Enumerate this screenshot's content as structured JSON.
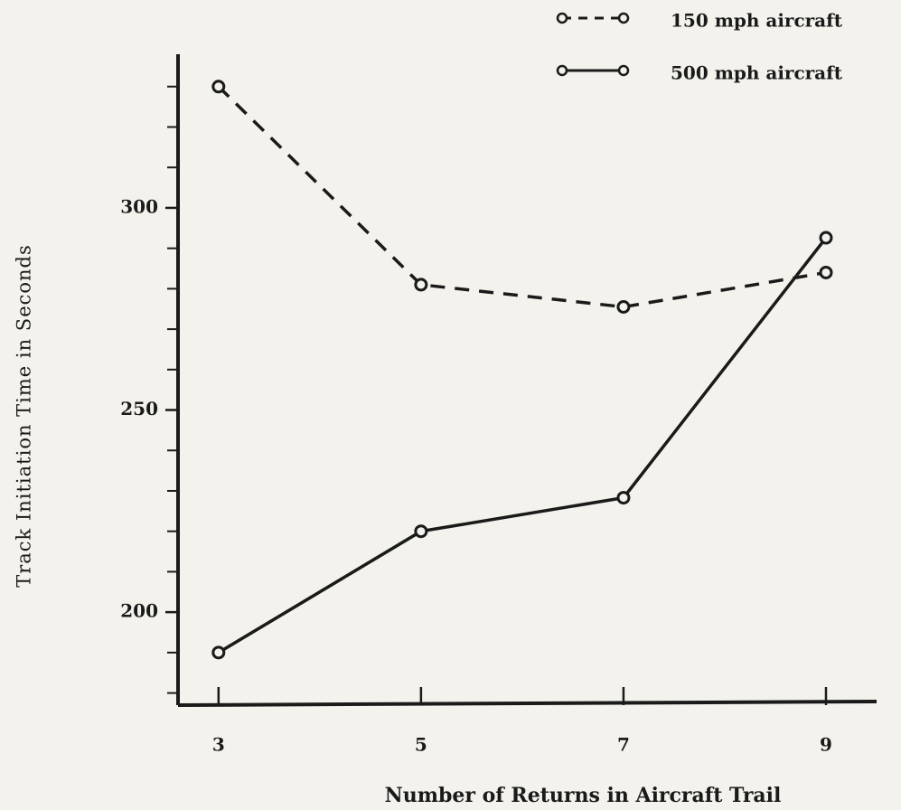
{
  "chart_data": {
    "type": "line",
    "x_label": "Number of Returns in Aircraft Trail",
    "y_label": "Track Initiation Time in Seconds",
    "x": [
      3,
      5,
      7,
      9
    ],
    "series": [
      {
        "name": "150 mph aircraft",
        "color": "#1a1a1a",
        "line_style": "dashed",
        "values": [
          330,
          281,
          275.5,
          284
        ]
      },
      {
        "name": "500 mph aircraft",
        "color": "#1a1a1a",
        "line_style": "solid",
        "values": [
          190,
          220,
          228.3,
          292.6
        ]
      }
    ],
    "xlim": [
      2.6,
      9.5
    ],
    "xticks": [
      3,
      5,
      7,
      9
    ],
    "ylim": [
      177,
      338
    ],
    "yticks": [
      200,
      250,
      300
    ],
    "yminorticks": [
      180,
      190,
      210,
      220,
      230,
      240,
      260,
      270,
      280,
      290,
      310,
      320,
      330
    ],
    "grid": false,
    "legend": "top-right"
  }
}
